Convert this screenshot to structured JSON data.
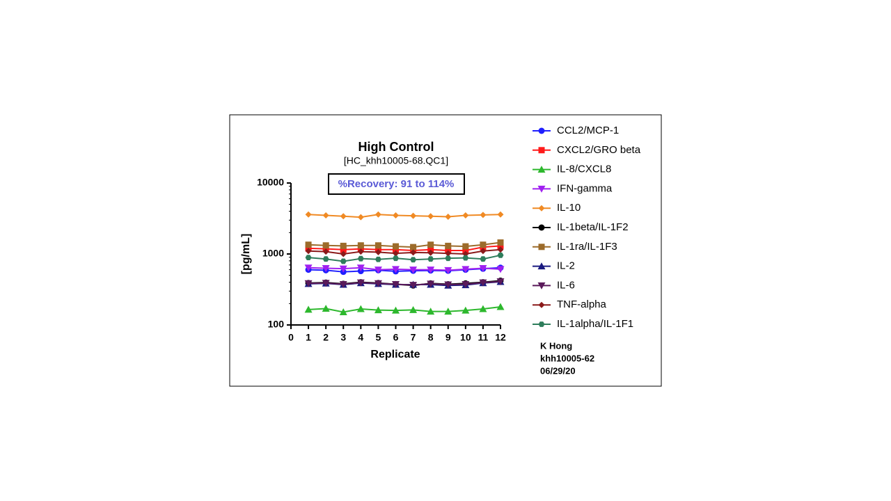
{
  "chart_data": {
    "type": "line",
    "title": "High  Control",
    "subtitle": "[HC_khh10005-68.QC1]",
    "annotations": [
      "%Recovery: 91 to 114%",
      "K Hong",
      "khh10005-62",
      "06/29/20"
    ],
    "x_label": "Replicate",
    "y_label": "[pg/mL]",
    "x": [
      1,
      2,
      3,
      4,
      5,
      6,
      7,
      8,
      9,
      10,
      11,
      12
    ],
    "xlim": [
      0,
      12
    ],
    "xticks": [
      0,
      1,
      2,
      3,
      4,
      5,
      6,
      7,
      8,
      9,
      10,
      11,
      12
    ],
    "ylim": [
      100,
      10000
    ],
    "yticks": [
      100,
      1000,
      10000
    ],
    "yscale": "log",
    "grid": false,
    "legend": "right",
    "series": [
      {
        "name": "CCL2/MCP-1",
        "color": "#1f1fff",
        "marker": "circle",
        "values": [
          600,
          590,
          560,
          575,
          590,
          570,
          580,
          585,
          580,
          600,
          620,
          640
        ]
      },
      {
        "name": "CXCL2/GRO beta",
        "color": "#ff1a1a",
        "marker": "square",
        "values": [
          1200,
          1180,
          1150,
          1180,
          1150,
          1150,
          1120,
          1150,
          1120,
          1120,
          1250,
          1300
        ]
      },
      {
        "name": "IL-8/CXCL8",
        "color": "#2db82d",
        "marker": "triangle-up",
        "values": [
          165,
          170,
          152,
          168,
          162,
          160,
          163,
          155,
          155,
          160,
          168,
          180
        ]
      },
      {
        "name": "IFN-gamma",
        "color": "#a020f0",
        "marker": "triangle-down",
        "values": [
          640,
          630,
          620,
          640,
          600,
          610,
          600,
          600,
          590,
          610,
          630,
          610
        ]
      },
      {
        "name": "IL-10",
        "color": "#f08a24",
        "marker": "diamond",
        "values": [
          3600,
          3500,
          3400,
          3300,
          3600,
          3500,
          3450,
          3400,
          3350,
          3500,
          3550,
          3600
        ]
      },
      {
        "name": "IL-1beta/IL-1F2",
        "color": "#000000",
        "marker": "circle",
        "values": [
          390,
          395,
          380,
          400,
          390,
          375,
          360,
          385,
          375,
          385,
          400,
          420
        ]
      },
      {
        "name": "IL-1ra/IL-1F3",
        "color": "#9c6b2a",
        "marker": "square",
        "values": [
          1350,
          1320,
          1300,
          1320,
          1320,
          1280,
          1250,
          1350,
          1300,
          1280,
          1350,
          1450
        ]
      },
      {
        "name": "IL-2",
        "color": "#1a1a80",
        "marker": "triangle-up",
        "values": [
          380,
          385,
          370,
          390,
          380,
          370,
          370,
          370,
          360,
          365,
          390,
          405
        ]
      },
      {
        "name": "IL-6",
        "color": "#5a1a5a",
        "marker": "triangle-down",
        "values": [
          385,
          390,
          375,
          395,
          385,
          375,
          365,
          380,
          370,
          375,
          395,
          410
        ]
      },
      {
        "name": "TNF-alpha",
        "color": "#8b1a1a",
        "marker": "diamond",
        "values": [
          1100,
          1080,
          1000,
          1080,
          1060,
          1020,
          1050,
          1040,
          1020,
          1000,
          1100,
          1150
        ]
      },
      {
        "name": "IL-1alpha/IL-1F1",
        "color": "#2e7d5b",
        "marker": "hexagon",
        "values": [
          890,
          850,
          790,
          860,
          840,
          870,
          830,
          850,
          870,
          880,
          850,
          960
        ]
      }
    ]
  }
}
